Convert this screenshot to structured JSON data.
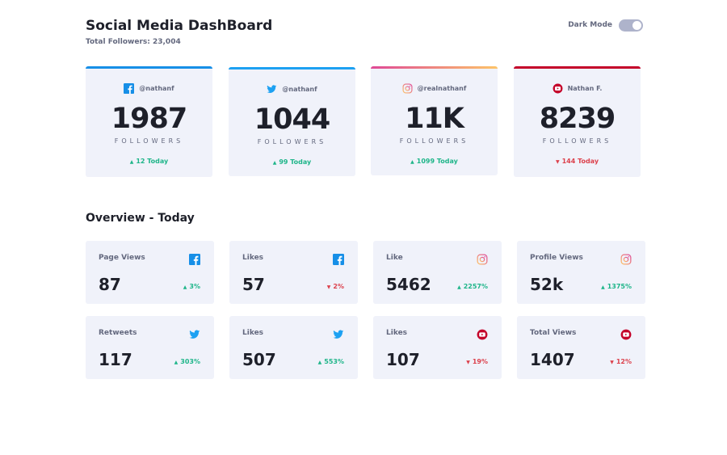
{
  "header": {
    "title": "Social Media DashBoard",
    "total_followers": "Total Followers: 23,004",
    "dark_mode_label": "Dark Mode",
    "dark_mode_on": true
  },
  "colors": {
    "facebook": "#178fe7",
    "twitter": "#1da1f2",
    "instagram_from": "#fdc468",
    "instagram_to": "#df4996",
    "youtube": "#c4032a",
    "up": "#1eb589",
    "down": "#dc414c"
  },
  "follower_cards": [
    {
      "platform": "facebook",
      "icon": "facebook-icon",
      "handle": "@nathanf",
      "count": "1987",
      "label": "FOLLOWERS",
      "today": "12 Today",
      "trend": "up"
    },
    {
      "platform": "twitter",
      "icon": "twitter-icon",
      "handle": "@nathanf",
      "count": "1044",
      "label": "FOLLOWERS",
      "today": "99 Today",
      "trend": "up"
    },
    {
      "platform": "instagram",
      "icon": "instagram-icon",
      "handle": "@realnathanf",
      "count": "11K",
      "label": "FOLLOWERS",
      "today": "1099 Today",
      "trend": "up"
    },
    {
      "platform": "youtube",
      "icon": "youtube-icon",
      "handle": "Nathan F.",
      "count": "8239",
      "label": "FOLLOWERS",
      "today": "144 Today",
      "trend": "down"
    }
  ],
  "overview": {
    "title": "Overview - Today",
    "tiles": [
      {
        "label": "Page Views",
        "icon": "facebook-icon",
        "value": "87",
        "pct": "3%",
        "trend": "up"
      },
      {
        "label": "Likes",
        "icon": "facebook-icon",
        "value": "57",
        "pct": "2%",
        "trend": "down"
      },
      {
        "label": "Like",
        "icon": "instagram-icon",
        "value": "5462",
        "pct": "2257%",
        "trend": "up"
      },
      {
        "label": "Profile Views",
        "icon": "instagram-icon",
        "value": "52k",
        "pct": "1375%",
        "trend": "up"
      },
      {
        "label": "Retweets",
        "icon": "twitter-icon",
        "value": "117",
        "pct": "303%",
        "trend": "up"
      },
      {
        "label": "Likes",
        "icon": "twitter-icon",
        "value": "507",
        "pct": "553%",
        "trend": "up"
      },
      {
        "label": "Likes",
        "icon": "youtube-icon",
        "value": "107",
        "pct": "19%",
        "trend": "down"
      },
      {
        "label": "Total Views",
        "icon": "youtube-icon",
        "value": "1407",
        "pct": "12%",
        "trend": "down"
      }
    ]
  }
}
